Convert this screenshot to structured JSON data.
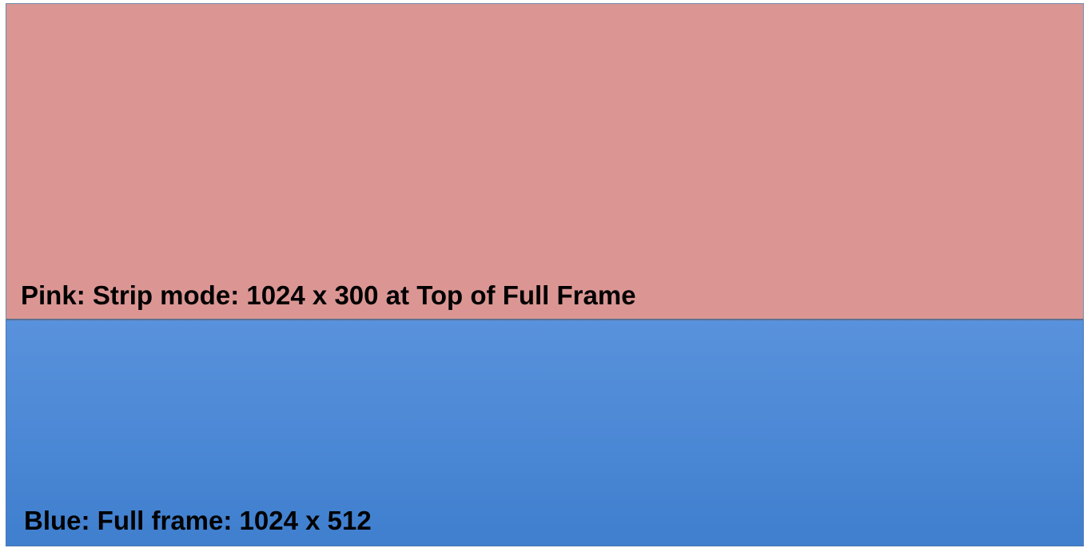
{
  "full_frame": {
    "label": "Blue:  Full frame: 1024 x 512",
    "color": "#5b93dd"
  },
  "strip": {
    "label": "Pink:  Strip mode: 1024 x 300 at Top of Full Frame",
    "color": "#db9694"
  }
}
